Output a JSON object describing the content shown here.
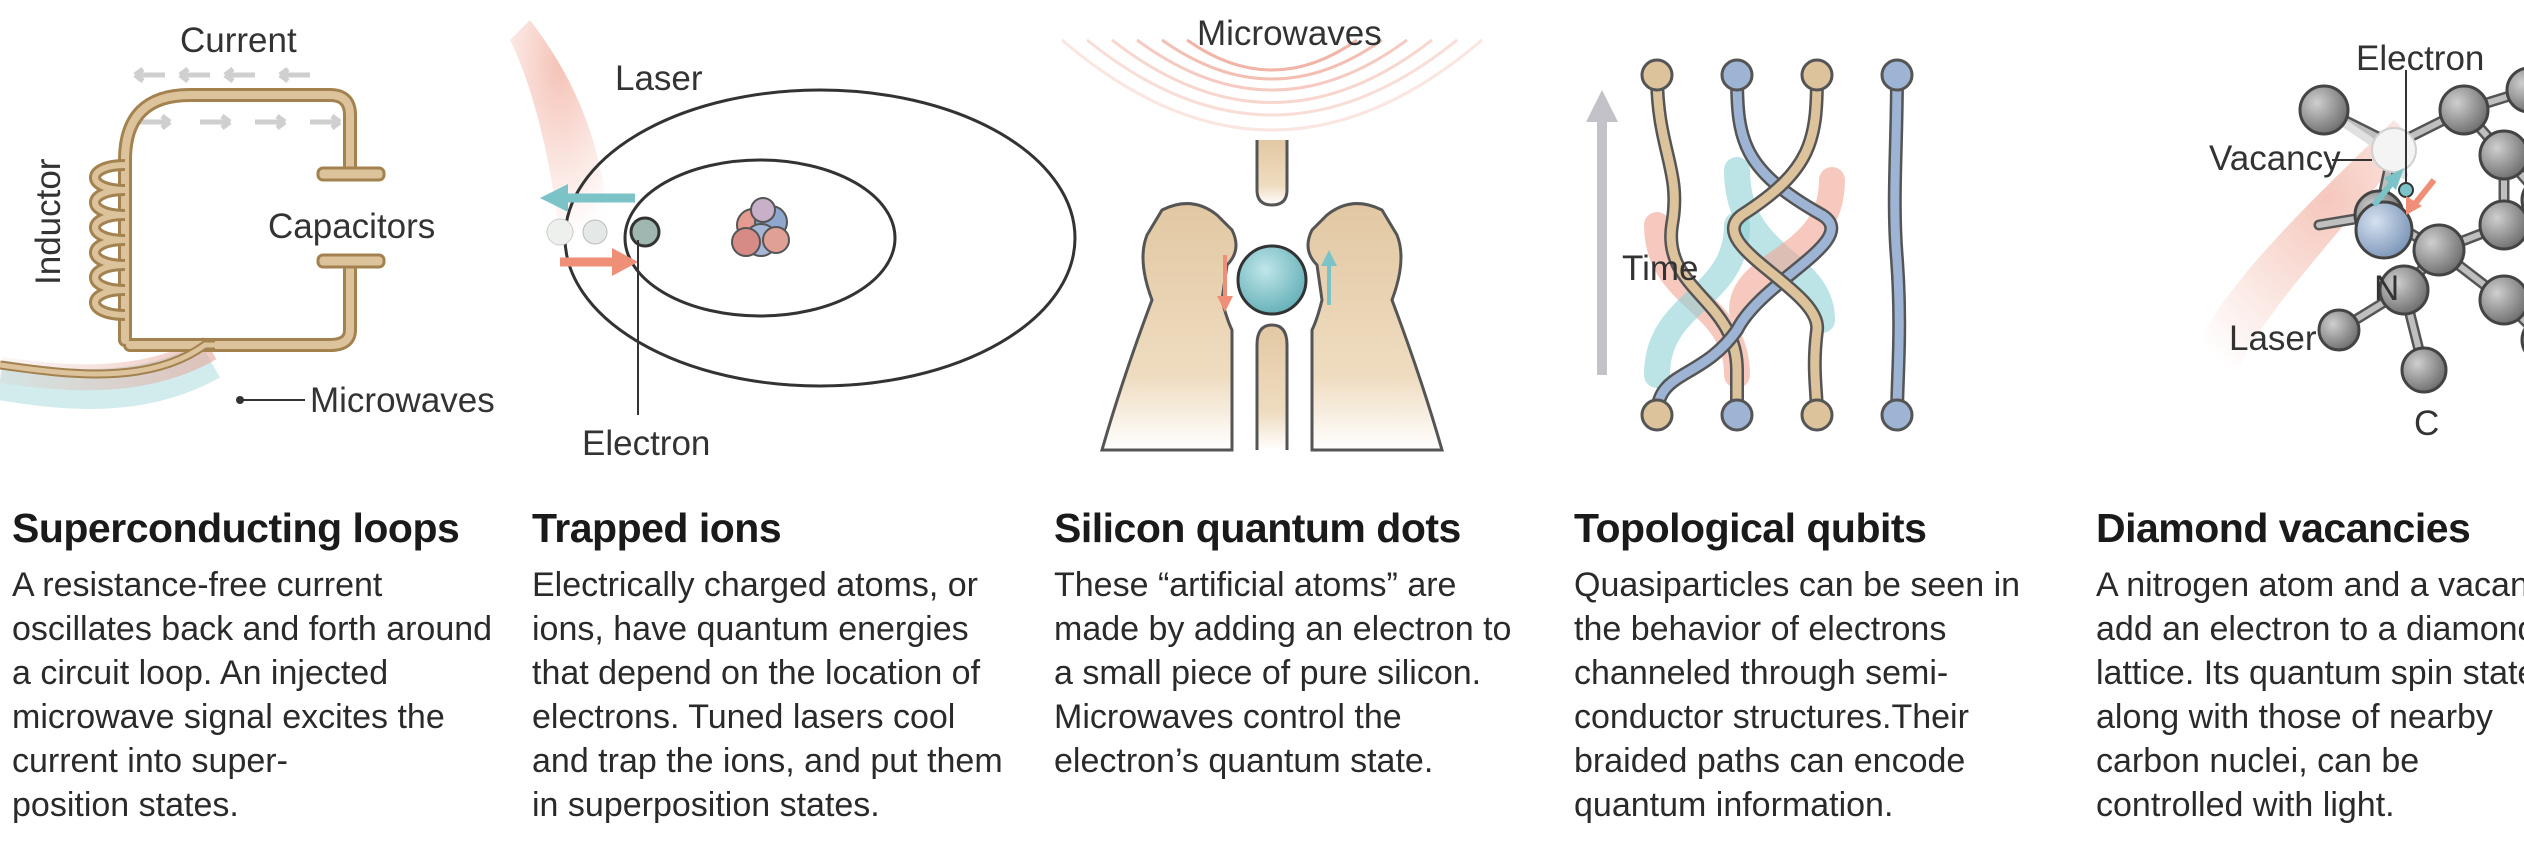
{
  "panels": [
    {
      "title": "Superconducting loops",
      "body": [
        "A resistance-free current",
        "oscillates back and forth around",
        "a circuit loop. An injected",
        "microwave signal excites the",
        "current into super-",
        "position states."
      ],
      "labels": {
        "current": "Current",
        "inductor": "Inductor",
        "capacitors": "Capacitors",
        "microwaves": "Microwaves"
      }
    },
    {
      "title": "Trapped ions",
      "body": [
        "Electrically charged atoms, or",
        "ions, have quantum energies",
        "that depend on the location of",
        "electrons. Tuned lasers cool",
        "and trap the ions, and put them",
        "in superposition states."
      ],
      "labels": {
        "laser": "Laser",
        "electron": "Electron"
      }
    },
    {
      "title": "Silicon quantum dots",
      "body": [
        "These “artificial atoms” are",
        "made by adding an electron to",
        "a small piece of pure silicon.",
        "Microwaves control the",
        "electron’s quantum state."
      ],
      "labels": {
        "microwaves": "Microwaves"
      }
    },
    {
      "title": "Topological qubits",
      "body": [
        "Quasiparticles can be seen in",
        "the behavior of electrons",
        "channeled through semi-",
        "conductor structures.Their",
        "braided paths can encode",
        "quantum information."
      ],
      "labels": {
        "time": "Time"
      }
    },
    {
      "title": "Diamond vacancies",
      "body": [
        "A nitrogen atom and a vacancy",
        "add an electron to a diamond",
        "lattice. Its quantum spin state,",
        "along with those of nearby",
        "carbon nuclei, can be",
        "controlled with light."
      ],
      "labels": {
        "electron": "Electron",
        "vacancy": "Vacancy",
        "n": "N",
        "laser": "Laser",
        "c": "C"
      }
    }
  ],
  "colors": {
    "wire": "#c9a77a",
    "blue": "#8aa4c2",
    "teal": "#7cc3c8",
    "salmon": "#ef8f78",
    "gray": "#7d7d7d"
  }
}
